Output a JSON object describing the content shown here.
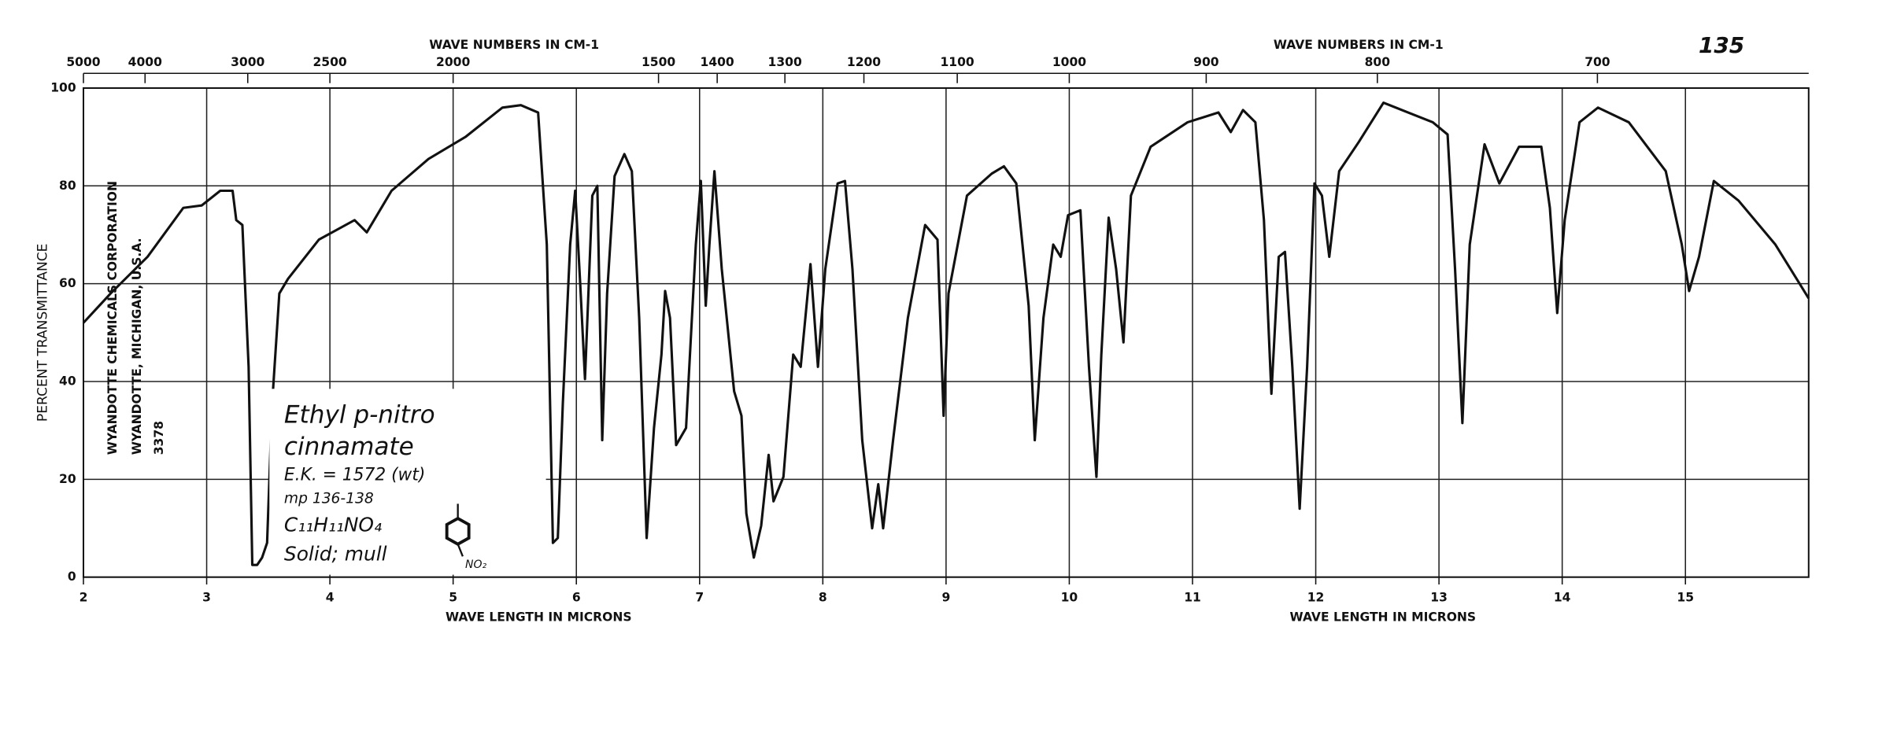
{
  "chart_data": {
    "type": "line",
    "page_number": "135",
    "x_label": "WAVE LENGTH IN MICRONS",
    "x2_label": "WAVE NUMBERS IN CM-1",
    "y_label": "PERCENT TRANSMITTANCE",
    "annotations": [
      "Ethyl p-nitro",
      "cinnamate",
      "E.K. = 1572 (wt)",
      "mp 136-138",
      "C₁₁H₁₁NO₄",
      "Solid; mull",
      "NO₂"
    ],
    "publisher": [
      "WYANDOTTE CHEMICALS CORPORATION",
      "WYANDOTTE, MICHIGAN, U.S.A.",
      "3378"
    ],
    "color": "#111111",
    "grid": true,
    "xlim": [
      2,
      16
    ],
    "xticks": [
      2,
      3,
      4,
      5,
      6,
      7,
      8,
      9,
      10,
      11,
      12,
      13,
      14,
      15
    ],
    "x2ticks": [
      5000,
      4000,
      3000,
      2500,
      2000,
      1500,
      1400,
      1300,
      1200,
      1100,
      1000,
      900,
      800,
      700
    ],
    "ylim": [
      0,
      100
    ],
    "yticks": [
      0,
      20,
      40,
      60,
      80,
      100
    ],
    "x": [
      2.0,
      2.22,
      2.52,
      2.81,
      2.96,
      3.11,
      3.21,
      3.24,
      3.29,
      3.34,
      3.37,
      3.41,
      3.45,
      3.49,
      3.53,
      3.59,
      3.66,
      3.91,
      4.2,
      4.3,
      4.5,
      4.8,
      5.1,
      5.4,
      5.55,
      5.69,
      5.76,
      5.81,
      5.85,
      5.89,
      5.95,
      5.99,
      6.03,
      6.07,
      6.13,
      6.17,
      6.21,
      6.25,
      6.31,
      6.39,
      6.45,
      6.51,
      6.57,
      6.63,
      6.69,
      6.72,
      6.76,
      6.81,
      6.89,
      6.97,
      7.01,
      7.05,
      7.08,
      7.12,
      7.18,
      7.28,
      7.34,
      7.38,
      7.44,
      7.5,
      7.56,
      7.6,
      7.68,
      7.76,
      7.82,
      7.9,
      7.96,
      8.02,
      8.12,
      8.18,
      8.24,
      8.32,
      8.4,
      8.45,
      8.49,
      8.57,
      8.69,
      8.83,
      8.93,
      8.98,
      9.02,
      9.17,
      9.37,
      9.47,
      9.57,
      9.67,
      9.72,
      9.79,
      9.87,
      9.93,
      9.99,
      10.09,
      10.16,
      10.22,
      10.26,
      10.32,
      10.38,
      10.44,
      10.5,
      10.66,
      10.96,
      11.21,
      11.31,
      11.41,
      11.51,
      11.58,
      11.64,
      11.7,
      11.75,
      11.81,
      11.87,
      11.93,
      11.99,
      12.05,
      12.11,
      12.19,
      12.35,
      12.55,
      12.75,
      12.95,
      13.07,
      13.13,
      13.19,
      13.25,
      13.37,
      13.49,
      13.65,
      13.83,
      13.9,
      13.96,
      14.02,
      14.14,
      14.29,
      14.54,
      14.84,
      14.97,
      15.03,
      15.11,
      15.23,
      15.43,
      15.73,
      16.0
    ],
    "values": [
      52,
      58,
      65.5,
      75.5,
      76,
      79,
      79,
      73,
      72,
      43,
      2.5,
      2.5,
      4,
      7,
      35,
      58,
      61,
      69,
      73,
      70.5,
      79,
      85.5,
      90,
      96,
      96.5,
      95,
      68,
      7,
      8,
      35.5,
      68,
      79,
      60.5,
      40.5,
      78,
      80,
      28,
      58,
      82,
      86.5,
      83,
      53,
      8,
      30.5,
      45.5,
      58.5,
      53,
      27,
      30.5,
      68,
      81,
      55.5,
      68,
      83,
      63,
      38,
      33,
      13,
      4,
      10.5,
      25,
      15.5,
      20.5,
      45.5,
      43,
      64,
      43,
      63,
      80.5,
      81,
      63,
      28,
      10,
      19,
      10,
      28,
      53,
      72,
      69,
      33,
      58,
      78,
      82.5,
      84,
      80.5,
      55.5,
      28,
      53,
      68,
      65.5,
      74,
      75,
      43,
      20.5,
      45.5,
      73.5,
      63,
      48,
      78,
      88,
      93,
      95,
      91,
      95.5,
      93,
      73,
      37.5,
      65.5,
      66.5,
      43,
      14,
      43,
      80.5,
      78,
      65.5,
      83,
      89,
      97,
      95,
      93,
      90.5,
      63,
      31.5,
      68,
      88.5,
      80.5,
      88,
      88,
      75.5,
      54,
      73,
      93,
      96,
      93,
      83,
      68,
      58.5,
      65.5,
      81,
      77,
      68,
      57
    ]
  }
}
